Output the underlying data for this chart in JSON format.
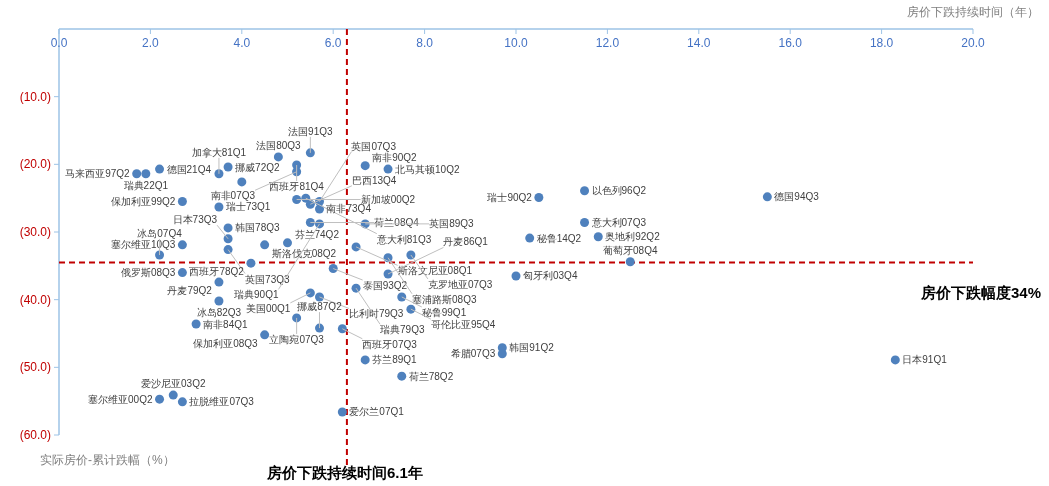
{
  "chart_data": {
    "type": "scatter",
    "xlabel": "房价下跌持续时间（年）",
    "ylabel": "实际房价-累计跌幅（%）",
    "marker": "circle",
    "xlim": [
      0,
      20
    ],
    "ylim": [
      -60,
      0
    ],
    "xticks": [
      {
        "value": 0,
        "label": "0.0"
      },
      {
        "value": 2,
        "label": "2.0"
      },
      {
        "value": 4,
        "label": "4.0"
      },
      {
        "value": 6,
        "label": "6.0"
      },
      {
        "value": 8,
        "label": "8.0"
      },
      {
        "value": 10,
        "label": "10.0"
      },
      {
        "value": 12,
        "label": "12.0"
      },
      {
        "value": 14,
        "label": "14.0"
      },
      {
        "value": 16,
        "label": "16.0"
      },
      {
        "value": 18,
        "label": "18.0"
      },
      {
        "value": 20,
        "label": "20.0"
      }
    ],
    "yticks": [
      {
        "value": -10,
        "label": "(10.0)"
      },
      {
        "value": -20,
        "label": "(20.0)"
      },
      {
        "value": -30,
        "label": "(30.0)"
      },
      {
        "value": -40,
        "label": "(40.0)"
      },
      {
        "value": -50,
        "label": "(50.0)"
      },
      {
        "value": -60,
        "label": "(60.0)"
      }
    ],
    "series": [
      {
        "color": "#4f81bd",
        "x": [
          1.7,
          1.9,
          2.2,
          2.7,
          2.7,
          2.2,
          2.7,
          3.5,
          3.7,
          4.0,
          3.5,
          3.7,
          3.7,
          3.7,
          4.5,
          5.0,
          4.2,
          4.8,
          5.2,
          5.2,
          5.5,
          6.7,
          5.2,
          5.4,
          5.5,
          5.7,
          5.7,
          5.5,
          5.7,
          6.7,
          6.5,
          6.0,
          3.5,
          3.5,
          5.5,
          5.7,
          6.5,
          7.2,
          7.2,
          7.7,
          7.2,
          7.5,
          7.7,
          10.3,
          10.0,
          10.5,
          11.5,
          15.5,
          11.5,
          11.8,
          12.5,
          5.2,
          5.7,
          6.2,
          3.0,
          4.5,
          6.7,
          7.5,
          6.2,
          2.5,
          2.2,
          2.7,
          9.7,
          9.7,
          18.3
        ],
        "values": [
          -21.4,
          -21.4,
          -20.7,
          -25.5,
          -31.9,
          -33.4,
          -36.0,
          -21.4,
          -20.4,
          -22.6,
          -26.3,
          -29.4,
          -31.0,
          -32.6,
          -31.9,
          -31.6,
          -34.6,
          -18.9,
          -20.1,
          -21.1,
          -18.3,
          -20.2,
          -25.2,
          -25.0,
          -25.9,
          -25.5,
          -26.6,
          -28.6,
          -28.8,
          -28.8,
          -32.2,
          -35.4,
          -37.4,
          -40.2,
          -39.0,
          -39.6,
          -38.3,
          -20.7,
          -33.8,
          -33.4,
          -36.2,
          -39.6,
          -41.4,
          -30.9,
          -36.5,
          -24.9,
          -23.9,
          -24.8,
          -28.6,
          -30.7,
          -34.4,
          -42.7,
          -44.2,
          -44.3,
          -43.6,
          -45.2,
          -48.9,
          -51.3,
          -56.6,
          -54.1,
          -54.7,
          -55.1,
          -47.1,
          -48.0,
          -48.9
        ]
      }
    ],
    "ref_lines": [
      {
        "axis": "x",
        "value": 6.3,
        "label": "房价下跌持续时间6.1年",
        "color": "#c00000",
        "line_style": "dashed"
      },
      {
        "axis": "y",
        "value": -34.5,
        "label": "房价下跌幅度34%",
        "color": "#c00000",
        "line_style": "dashed"
      }
    ],
    "annotations": [
      {
        "text": "马来西亚97Q2",
        "x": 1.7,
        "y": -21.4
      },
      {
        "text": "瑞典22Q1",
        "x": 1.9,
        "y": -21.4
      },
      {
        "text": "德国21Q4",
        "x": 2.2,
        "y": -20.7
      },
      {
        "text": "保加利亚99Q2",
        "x": 2.7,
        "y": -25.5
      },
      {
        "text": "塞尔维亚10Q3",
        "x": 2.7,
        "y": -31.9
      },
      {
        "text": "冰岛07Q4",
        "x": 2.2,
        "y": -33.4
      },
      {
        "text": "俄罗斯08Q3",
        "x": 2.7,
        "y": -36.0
      },
      {
        "text": "加拿大81Q1",
        "x": 3.5,
        "y": -21.4
      },
      {
        "text": "挪威72Q2",
        "x": 3.7,
        "y": -20.4
      },
      {
        "text": "瑞士73Q1",
        "x": 3.5,
        "y": -26.3
      },
      {
        "text": "韩国78Q3",
        "x": 3.7,
        "y": -29.4
      },
      {
        "text": "日本73Q3",
        "x": 3.7,
        "y": -31.0
      },
      {
        "text": "英国73Q3",
        "x": 3.7,
        "y": -32.6
      },
      {
        "text": "斯洛伐克08Q2",
        "x": 4.5,
        "y": -31.9
      },
      {
        "text": "芬兰74Q2",
        "x": 5.0,
        "y": -31.6
      },
      {
        "text": "西班牙78Q2",
        "x": 4.2,
        "y": -34.6
      },
      {
        "text": "法国80Q3",
        "x": 4.8,
        "y": -18.9
      },
      {
        "text": "西班牙81Q4",
        "x": 5.2,
        "y": -20.1
      },
      {
        "text": "南非07Q3",
        "x": 5.2,
        "y": -21.1
      },
      {
        "text": "法国91Q3",
        "x": 5.5,
        "y": -18.3
      },
      {
        "text": "南非90Q2",
        "x": 6.7,
        "y": -20.2
      },
      {
        "text": "新加坡00Q2",
        "x": 5.2,
        "y": -25.2
      },
      {
        "text": "意大利81Q3",
        "x": 5.4,
        "y": -25.0
      },
      {
        "text": "巴西13Q4",
        "x": 5.5,
        "y": -25.9
      },
      {
        "text": "英国07Q3",
        "x": 5.7,
        "y": -25.5
      },
      {
        "text": "南非73Q4",
        "x": 5.7,
        "y": -26.6
      },
      {
        "text": "荷兰08Q4",
        "x": 5.5,
        "y": -28.6
      },
      {
        "text": "瑞典90Q1",
        "x": 5.7,
        "y": -28.8
      },
      {
        "text": "英国89Q3",
        "x": 6.7,
        "y": -28.8
      },
      {
        "text": "斯洛文尼亚08Q1",
        "x": 6.5,
        "y": -32.2
      },
      {
        "text": "泰国93Q2",
        "x": 6.0,
        "y": -35.4
      },
      {
        "text": "丹麦79Q2",
        "x": 3.5,
        "y": -37.4
      },
      {
        "text": "冰岛82Q3",
        "x": 3.5,
        "y": -40.2
      },
      {
        "text": "美国00Q1",
        "x": 5.5,
        "y": -39.0
      },
      {
        "text": "比利时79Q3",
        "x": 5.7,
        "y": -39.6
      },
      {
        "text": "瑞典79Q3",
        "x": 6.5,
        "y": -38.3
      },
      {
        "text": "北马其顿10Q2",
        "x": 7.2,
        "y": -20.7
      },
      {
        "text": "塞浦路斯08Q3",
        "x": 7.2,
        "y": -33.8
      },
      {
        "text": "克罗地亚07Q3",
        "x": 7.7,
        "y": -33.4
      },
      {
        "text": "丹麦86Q1",
        "x": 7.2,
        "y": -36.2
      },
      {
        "text": "秘鲁99Q1",
        "x": 7.5,
        "y": -39.6
      },
      {
        "text": "哥伦比亚95Q4",
        "x": 7.7,
        "y": -41.4
      },
      {
        "text": "秘鲁14Q2",
        "x": 10.3,
        "y": -30.9
      },
      {
        "text": "匈牙利03Q4",
        "x": 10.0,
        "y": -36.5
      },
      {
        "text": "瑞士90Q2",
        "x": 10.5,
        "y": -24.9
      },
      {
        "text": "以色列96Q2",
        "x": 11.5,
        "y": -23.9
      },
      {
        "text": "德国94Q3",
        "x": 15.5,
        "y": -24.8
      },
      {
        "text": "意大利07Q3",
        "x": 11.5,
        "y": -28.6
      },
      {
        "text": "奥地利92Q2",
        "x": 11.8,
        "y": -30.7
      },
      {
        "text": "葡萄牙08Q4",
        "x": 12.5,
        "y": -34.4
      },
      {
        "text": "立陶宛07Q3",
        "x": 5.2,
        "y": -42.7
      },
      {
        "text": "挪威87Q2",
        "x": 5.7,
        "y": -44.2
      },
      {
        "text": "西班牙07Q3",
        "x": 6.2,
        "y": -44.3
      },
      {
        "text": "南非84Q1",
        "x": 3.0,
        "y": -43.6
      },
      {
        "text": "保加利亚08Q3",
        "x": 4.5,
        "y": -45.2
      },
      {
        "text": "芬兰89Q1",
        "x": 6.7,
        "y": -48.9
      },
      {
        "text": "荷兰78Q2",
        "x": 7.5,
        "y": -51.3
      },
      {
        "text": "爱尔兰07Q1",
        "x": 6.2,
        "y": -56.6
      },
      {
        "text": "爱沙尼亚03Q2",
        "x": 2.5,
        "y": -54.1
      },
      {
        "text": "塞尔维亚00Q2",
        "x": 2.2,
        "y": -54.7
      },
      {
        "text": "拉脱维亚07Q3",
        "x": 2.7,
        "y": -55.1
      },
      {
        "text": "韩国91Q2",
        "x": 9.7,
        "y": -47.1
      },
      {
        "text": "希腊07Q3",
        "x": 9.7,
        "y": -48.0
      },
      {
        "text": "日本91Q1",
        "x": 18.3,
        "y": -48.9
      }
    ]
  }
}
